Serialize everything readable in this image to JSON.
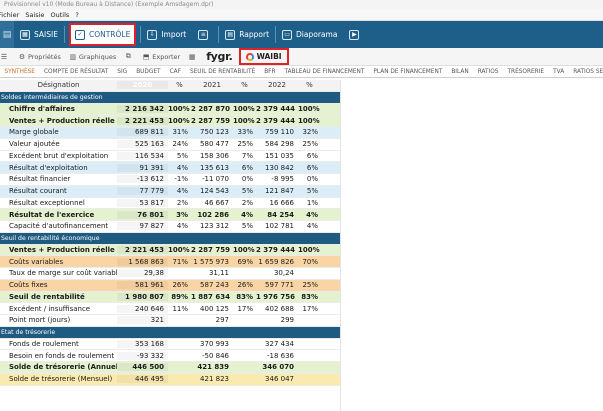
{
  "window": {
    "title": "Prévisionnel v10 (Mode Bureau à Distance) (Exemple Amsdagem.dpr)"
  },
  "menu": {
    "items": [
      "Fichier",
      "Saisie",
      "Outils",
      "?"
    ]
  },
  "ribbon": {
    "items": [
      {
        "label": "SAISIE",
        "icon": "grid-icon"
      },
      {
        "label": "CONTRÔLE",
        "icon": "check-icon"
      },
      {
        "label": "Import",
        "icon": "import-icon"
      },
      {
        "label": "",
        "icon": "clipboard-icon"
      },
      {
        "label": "Rapport",
        "icon": "report-icon"
      },
      {
        "label": "Diaporama",
        "icon": "slideshow-icon"
      },
      {
        "label": "",
        "icon": "play-icon"
      }
    ]
  },
  "toolbar": {
    "proprietes": "Propriétés",
    "graphiques": "Graphiques",
    "exporter": "Exporter",
    "fygr": "fygr.",
    "waibi": "WAIBI"
  },
  "tabs": [
    "SYNTHÈSE",
    "COMPTE DE RÉSULTAT",
    "SIG",
    "BUDGET",
    "CAF",
    "SEUIL DE RENTABILITÉ",
    "BFR",
    "TABLEAU DE FINANCEMENT",
    "PLAN DE FINANCEMENT",
    "BILAN",
    "RATIOS",
    "TRÉSORERIE",
    "TVA",
    "RATIOS SECTORIELS"
  ],
  "table": {
    "headers": [
      "Désignation",
      "2020",
      "%",
      "2021",
      "%",
      "2022",
      "%"
    ],
    "rows": [
      {
        "type": "section",
        "cells": [
          "Soldes intermédiaires de gestion"
        ]
      },
      {
        "type": "bold green",
        "cells": [
          "Chiffre d'affaires",
          "2 216 342",
          "100%",
          "2 287 870",
          "100%",
          "2 379 444",
          "100%"
        ]
      },
      {
        "type": "bold green",
        "cells": [
          "Ventes + Production réelle",
          "2 221 453",
          "100%",
          "2 287 759",
          "100%",
          "2 379 444",
          "100%"
        ]
      },
      {
        "type": "blue",
        "cells": [
          "Marge globale",
          "689 811",
          "31%",
          "750 123",
          "33%",
          "759 110",
          "32%"
        ]
      },
      {
        "type": "",
        "cells": [
          "Valeur ajoutée",
          "525 163",
          "24%",
          "580 477",
          "25%",
          "584 298",
          "25%"
        ]
      },
      {
        "type": "",
        "cells": [
          "Excédent brut d'exploitation",
          "116 534",
          "5%",
          "158 306",
          "7%",
          "151 035",
          "6%"
        ]
      },
      {
        "type": "blue",
        "cells": [
          "Résultat d'exploitation",
          "91 391",
          "4%",
          "135 613",
          "6%",
          "130 842",
          "6%"
        ]
      },
      {
        "type": "",
        "cells": [
          "Résultat financier",
          "-13 612",
          "-1%",
          "-11 070",
          "0%",
          "-8 995",
          "0%"
        ]
      },
      {
        "type": "blue",
        "cells": [
          "Résultat courant",
          "77 779",
          "4%",
          "124 543",
          "5%",
          "121 847",
          "5%"
        ]
      },
      {
        "type": "",
        "cells": [
          "Résultat exceptionnel",
          "53 817",
          "2%",
          "46 667",
          "2%",
          "16 666",
          "1%"
        ]
      },
      {
        "type": "bold green",
        "cells": [
          "Résultat de l'exercice",
          "76 801",
          "3%",
          "102 286",
          "4%",
          "84 254",
          "4%"
        ]
      },
      {
        "type": "",
        "cells": [
          "Capacité d'autofinancement",
          "97 827",
          "4%",
          "123 312",
          "5%",
          "102 781",
          "4%"
        ]
      },
      {
        "type": "section",
        "cells": [
          "Seuil de rentabilité économique"
        ]
      },
      {
        "type": "bold green",
        "cells": [
          "Ventes + Production réelle",
          "2 221 453",
          "100%",
          "2 287 759",
          "100%",
          "2 379 444",
          "100%"
        ]
      },
      {
        "type": "orange",
        "cells": [
          "Coûts variables",
          "1 568 863",
          "71%",
          "1 575 973",
          "69%",
          "1 659 826",
          "70%"
        ]
      },
      {
        "type": "",
        "cells": [
          "Taux de marge sur coût variable (%)",
          "29,38",
          "",
          "31,11",
          "",
          "30,24",
          ""
        ]
      },
      {
        "type": "orange",
        "cells": [
          "Coûts fixes",
          "581 961",
          "26%",
          "587 243",
          "26%",
          "597 771",
          "25%"
        ]
      },
      {
        "type": "bold green",
        "cells": [
          "Seuil de rentabilité",
          "1 980 807",
          "89%",
          "1 887 634",
          "83%",
          "1 976 756",
          "83%"
        ]
      },
      {
        "type": "",
        "cells": [
          "Excédent / insuffisance",
          "240 646",
          "11%",
          "400 125",
          "17%",
          "402 688",
          "17%"
        ]
      },
      {
        "type": "",
        "cells": [
          "Point mort (jours)",
          "321",
          "",
          "297",
          "",
          "299",
          ""
        ]
      },
      {
        "type": "section",
        "cells": [
          "État de trésorerie"
        ]
      },
      {
        "type": "",
        "cells": [
          "Fonds de roulement",
          "353 168",
          "",
          "370 993",
          "",
          "327 434",
          ""
        ]
      },
      {
        "type": "",
        "cells": [
          "Besoin en fonds de roulement",
          "-93 332",
          "",
          "-50 846",
          "",
          "-18 636",
          ""
        ]
      },
      {
        "type": "bold green",
        "cells": [
          "Solde de trésorerie (Annuel)",
          "446 500",
          "",
          "421 839",
          "",
          "346 070",
          ""
        ]
      },
      {
        "type": "yellow",
        "cells": [
          "Solde de trésorerie (Mensuel)",
          "446 495",
          "",
          "421 823",
          "",
          "346 047",
          ""
        ]
      }
    ]
  },
  "colors": {
    "ribbon": "#1e5f8a",
    "section": "#1f5a80",
    "highlight": "#e0202a",
    "active_tab": "#d2691e"
  }
}
